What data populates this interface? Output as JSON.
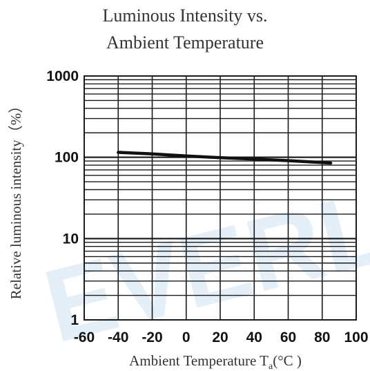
{
  "chart_data": {
    "type": "line",
    "title_line1": "Luminous Intensity vs.",
    "title_line2": "Ambient Temperature",
    "xlabel": "Ambient Temperature T",
    "xlabel_sub": "a",
    "xlabel_unit": "(°C )",
    "ylabel": "Relative luminous intensity（%）",
    "xlim": [
      -60,
      100
    ],
    "ylim": [
      1,
      1000
    ],
    "y_scale": "log",
    "grid": true,
    "x_ticks": [
      -60,
      -40,
      -20,
      0,
      20,
      40,
      60,
      80,
      100
    ],
    "x_tick_labels": [
      "-60",
      "-40",
      "-20",
      "0",
      "20",
      "40",
      "60",
      "80",
      "100"
    ],
    "y_ticks": [
      1,
      10,
      100,
      1000
    ],
    "y_tick_labels": [
      "1",
      "10",
      "100",
      "1000"
    ],
    "series": [
      {
        "x": [
          -40,
          -20,
          0,
          20,
          40,
          60,
          85
        ],
        "y": [
          115,
          110,
          104,
          99,
          95,
          91,
          85
        ]
      }
    ],
    "colors": {
      "line": "#111111",
      "grid": "#1a1a1a"
    }
  },
  "watermark": "EVERL"
}
